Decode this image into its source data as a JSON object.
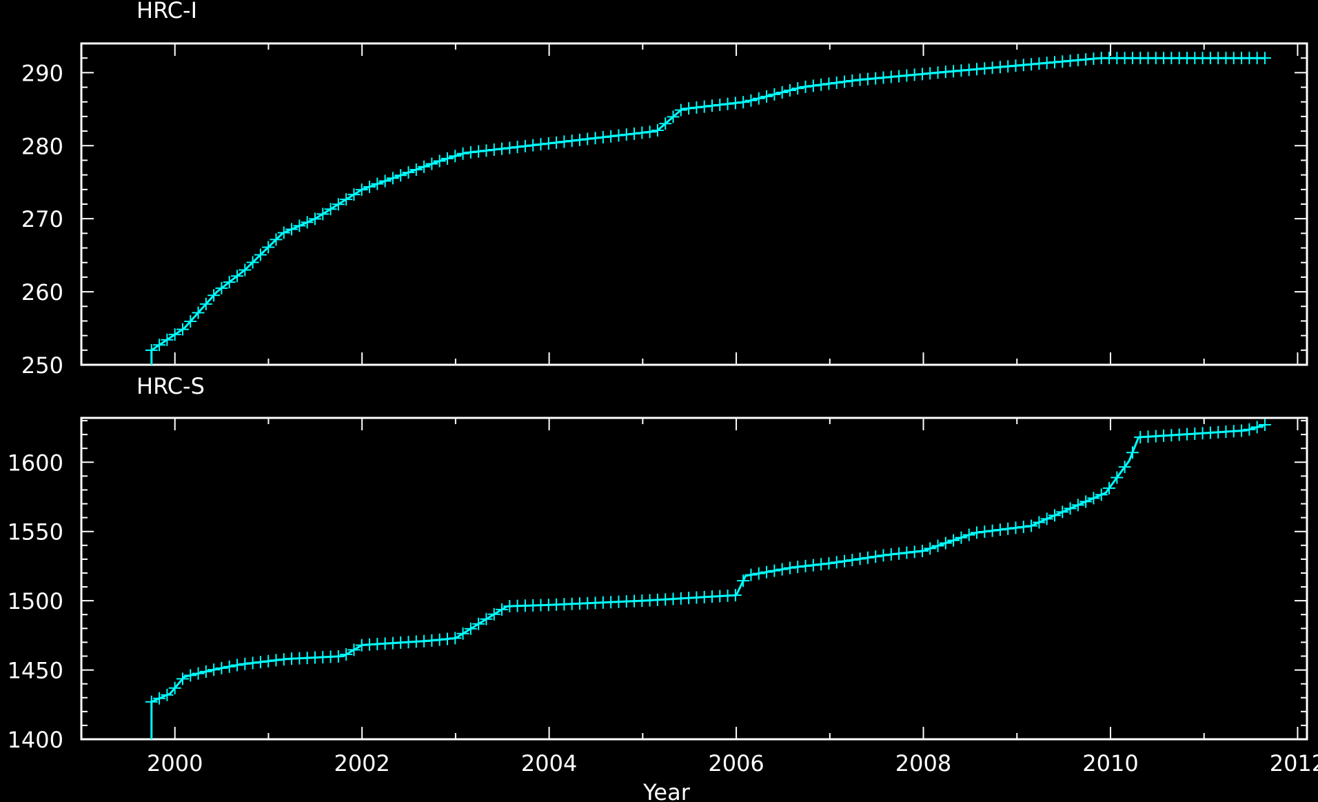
{
  "figure": {
    "xlabel": "Year"
  },
  "style": {
    "line_color": "#00ffff",
    "axis_color": "#ffffff",
    "background": "#000000"
  },
  "chart_data": [
    {
      "type": "line",
      "title": "HRC-I",
      "xlabel": "Year",
      "ylabel": "",
      "xlim": [
        1999,
        2012.1
      ],
      "ylim": [
        250,
        294
      ],
      "xticks": [
        2000,
        2002,
        2004,
        2006,
        2008,
        2010,
        2012
      ],
      "yticks": [
        250,
        260,
        270,
        280,
        290
      ],
      "grid": false,
      "series": [
        {
          "x": [
            1999.75,
            1999.75,
            2000.1,
            2000.45,
            2000.75,
            2001.15,
            2001.5,
            2002.0,
            2002.85,
            2003.1,
            2005.15,
            2005.42,
            2006.1,
            2006.7,
            2007.3,
            2008.15,
            2009.9,
            2011.65
          ],
          "y": [
            250,
            252,
            255,
            260,
            263,
            268,
            270,
            274,
            278,
            279,
            282,
            285,
            286,
            288,
            289,
            290,
            292,
            292
          ]
        }
      ]
    },
    {
      "type": "line",
      "title": "HRC-S",
      "xlabel": "Year",
      "ylabel": "",
      "xlim": [
        1999,
        2012.1
      ],
      "ylim": [
        1400,
        1632
      ],
      "xticks": [
        2000,
        2002,
        2004,
        2006,
        2008,
        2010,
        2012
      ],
      "yticks": [
        1400,
        1450,
        1500,
        1550,
        1600
      ],
      "grid": false,
      "series": [
        {
          "x": [
            1999.75,
            1999.75,
            1999.95,
            2000.1,
            2000.4,
            2000.7,
            2001.2,
            2001.8,
            2002.0,
            2002.7,
            2003.0,
            2003.55,
            2004.0,
            2005.0,
            2006.0,
            2006.1,
            2006.6,
            2007.0,
            2007.6,
            2008.0,
            2008.55,
            2009.15,
            2009.95,
            2010.2,
            2010.3,
            2011.0,
            2011.45,
            2011.65
          ],
          "y": [
            1400,
            1427,
            1433,
            1445,
            1450,
            1454,
            1458,
            1460,
            1468,
            1471,
            1473,
            1496,
            1497,
            1500,
            1504,
            1518,
            1524,
            1527,
            1533,
            1536,
            1549,
            1554,
            1578,
            1601,
            1618,
            1621,
            1623,
            1627
          ]
        }
      ]
    }
  ]
}
